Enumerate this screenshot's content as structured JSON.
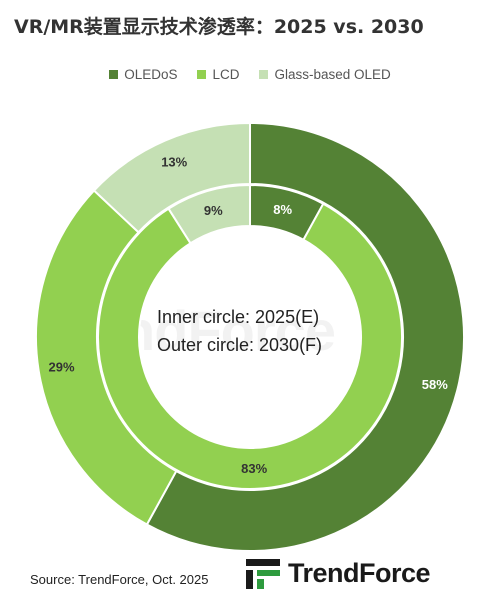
{
  "chart_data": {
    "type": "pie",
    "title": "VR/MR装置显示技术渗透率：2025 vs. 2030",
    "legend_position": "top",
    "categories": [
      "OLEDoS",
      "LCD",
      "Glass-based OLED"
    ],
    "series": [
      {
        "name": "2025(E)",
        "ring": "inner",
        "values": [
          8,
          83,
          9
        ],
        "labels": [
          "8%",
          "83%",
          "9%"
        ]
      },
      {
        "name": "2030(F)",
        "ring": "outer",
        "values": [
          58,
          29,
          13
        ],
        "labels": [
          "58%",
          "29%",
          "13%"
        ]
      }
    ],
    "annotations": [
      "Inner circle: 2025(E)",
      "Outer circle: 2030(F)"
    ]
  },
  "colors": {
    "OLEDoS": "#548235",
    "LCD": "#92d050",
    "Glass-based OLED": "#c5e0b4"
  },
  "source": "Source: TrendForce, Oct. 2025",
  "brand": "TrendForce",
  "watermark": "TrendForce"
}
